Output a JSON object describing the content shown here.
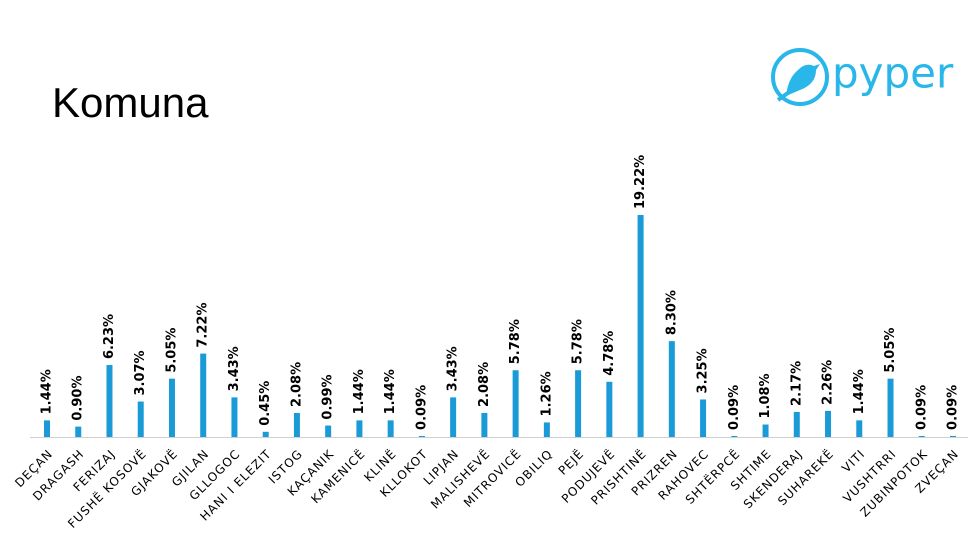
{
  "logo": "pyper",
  "chart_data": {
    "type": "bar",
    "title": "Komuna",
    "categories": [
      "DEÇAN",
      "DRAGASH",
      "FERIZAJ",
      "FUSHË KOSOVË",
      "GJAKOVË",
      "GJILAN",
      "GLLOGOC",
      "HANI I ELEZIT",
      "ISTOG",
      "KAÇANIK",
      "KAMENICË",
      "KLINË",
      "KLLOKOT",
      "LIPJAN",
      "MALISHEVË",
      "MITROVICË",
      "OBILIQ",
      "PEJË",
      "PODUJEVË",
      "PRISHTINË",
      "PRIZREN",
      "RAHOVEC",
      "SHTËRPCË",
      "SHTIME",
      "SKENDERAJ",
      "SUHAREKË",
      "VITI",
      "VUSHTRRI",
      "ZUBINPOTOK",
      "ZVEÇAN"
    ],
    "values": [
      1.44,
      0.9,
      6.23,
      3.07,
      5.05,
      7.22,
      3.43,
      0.45,
      2.08,
      0.99,
      1.44,
      1.44,
      0.09,
      3.43,
      2.08,
      5.78,
      1.26,
      5.78,
      4.78,
      19.22,
      8.3,
      3.25,
      0.09,
      1.08,
      2.17,
      2.26,
      1.44,
      5.05,
      0.09,
      0.09
    ],
    "value_labels": [
      "1.44%",
      "0.90%",
      "6.23%",
      "3.07%",
      "5.05%",
      "7.22%",
      "3.43%",
      "0.45%",
      "2.08%",
      "0.99%",
      "1.44%",
      "1.44%",
      "0.09%",
      "3.43%",
      "2.08%",
      "5.78%",
      "1.26%",
      "5.78%",
      "4.78%",
      "19.22%",
      "8.30%",
      "3.25%",
      "0.09%",
      "1.08%",
      "2.17%",
      "2.26%",
      "1.44%",
      "5.05%",
      "0.09%",
      "0.09%"
    ],
    "color": "#1a9bd7"
  }
}
